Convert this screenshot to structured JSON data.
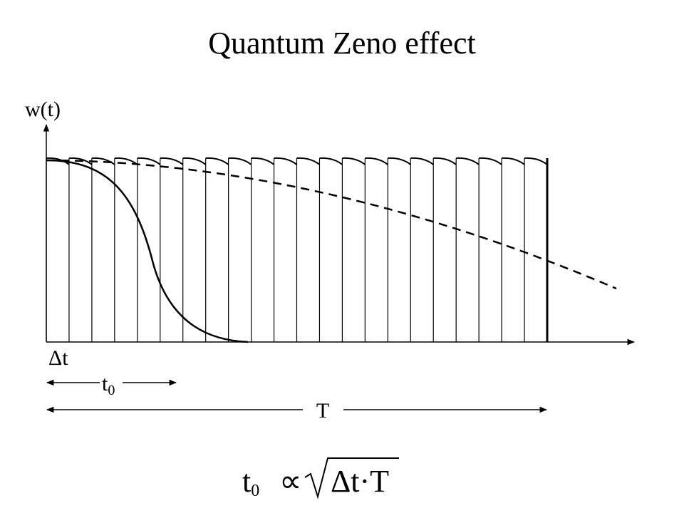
{
  "title": "Quantum Zeno effect",
  "axis_label": "w(t)",
  "interval_label": "Δt",
  "t0_label": {
    "main": "t",
    "sub": "0"
  },
  "period_label": "T",
  "formula": {
    "lhs_main": "t",
    "lhs_sub": "0",
    "relation": "∝",
    "radicand": "Δt·T"
  }
}
